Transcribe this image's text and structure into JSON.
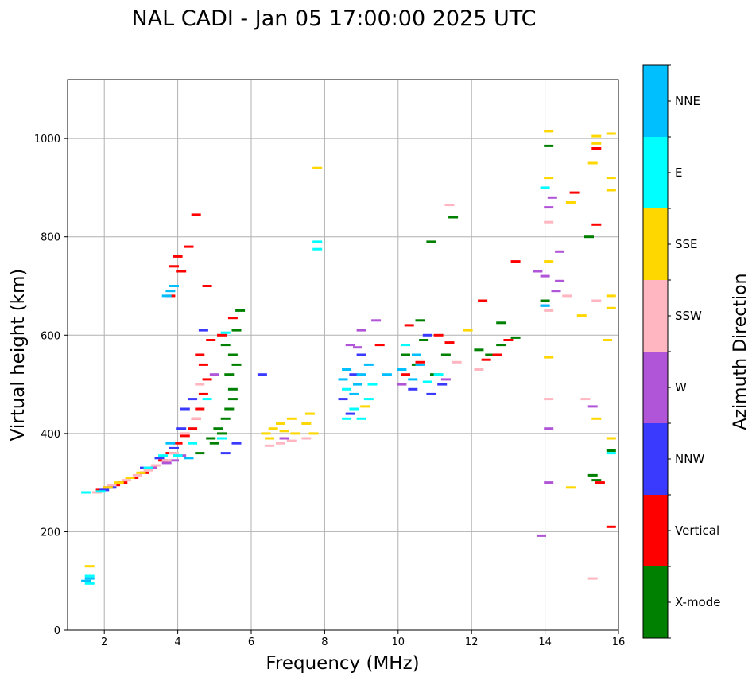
{
  "chart_data": {
    "type": "scatter",
    "title": "NAL CADI - Jan 05 17:00:00 2025 UTC",
    "xlabel": "Frequency (MHz)",
    "ylabel": "Virtual height (km)",
    "xlim": [
      1,
      16
    ],
    "ylim": [
      0,
      1120
    ],
    "xticks": [
      2,
      4,
      6,
      8,
      10,
      12,
      14,
      16
    ],
    "yticks": [
      0,
      200,
      400,
      600,
      800,
      1000
    ],
    "grid": true,
    "colorbar": {
      "label": "Azimuth Direction",
      "categories": [
        {
          "name": "X-mode",
          "color": "#008000"
        },
        {
          "name": "Vertical",
          "color": "#ff0000"
        },
        {
          "name": "NNW",
          "color": "#3a3aff"
        },
        {
          "name": "W",
          "color": "#b055d8"
        },
        {
          "name": "SSW",
          "color": "#ffb6c1"
        },
        {
          "name": "SSE",
          "color": "#ffd700"
        },
        {
          "name": "E",
          "color": "#00ffff"
        },
        {
          "name": "NNE",
          "color": "#00bfff"
        }
      ]
    },
    "series": [
      {
        "name": "X-mode",
        "points": [
          [
            4.6,
            360
          ],
          [
            4.9,
            390
          ],
          [
            5.1,
            410
          ],
          [
            5.3,
            430
          ],
          [
            5.4,
            450
          ],
          [
            5.5,
            470
          ],
          [
            5.5,
            490
          ],
          [
            5.4,
            520
          ],
          [
            5.6,
            540
          ],
          [
            5.5,
            560
          ],
          [
            5.3,
            580
          ],
          [
            5.6,
            610
          ],
          [
            5.7,
            650
          ],
          [
            5.2,
            400
          ],
          [
            5.0,
            380
          ],
          [
            10.2,
            560
          ],
          [
            10.5,
            540
          ],
          [
            10.7,
            590
          ],
          [
            11.0,
            520
          ],
          [
            11.3,
            560
          ],
          [
            12.5,
            560
          ],
          [
            12.8,
            580
          ],
          [
            13.2,
            595
          ],
          [
            12.2,
            570
          ],
          [
            15.2,
            800
          ],
          [
            15.3,
            315
          ],
          [
            15.4,
            305
          ],
          [
            11.5,
            840
          ],
          [
            10.9,
            790
          ],
          [
            14.1,
            985
          ],
          [
            14.0,
            670
          ],
          [
            15.8,
            365
          ],
          [
            10.6,
            630
          ],
          [
            12.8,
            625
          ]
        ]
      },
      {
        "name": "Vertical",
        "points": [
          [
            1.9,
            285
          ],
          [
            2.1,
            290
          ],
          [
            2.3,
            295
          ],
          [
            2.5,
            300
          ],
          [
            2.8,
            310
          ],
          [
            3.1,
            320
          ],
          [
            3.3,
            330
          ],
          [
            3.6,
            345
          ],
          [
            3.8,
            360
          ],
          [
            4.0,
            380
          ],
          [
            4.2,
            395
          ],
          [
            4.4,
            410
          ],
          [
            4.5,
            430
          ],
          [
            4.6,
            450
          ],
          [
            4.7,
            480
          ],
          [
            4.8,
            510
          ],
          [
            4.7,
            540
          ],
          [
            4.6,
            560
          ],
          [
            4.9,
            590
          ],
          [
            3.9,
            740
          ],
          [
            4.0,
            760
          ],
          [
            4.1,
            730
          ],
          [
            3.8,
            680
          ],
          [
            4.3,
            780
          ],
          [
            4.5,
            845
          ],
          [
            5.2,
            600
          ],
          [
            5.5,
            635
          ],
          [
            10.2,
            520
          ],
          [
            10.6,
            545
          ],
          [
            11.1,
            600
          ],
          [
            11.4,
            585
          ],
          [
            12.4,
            550
          ],
          [
            12.7,
            560
          ],
          [
            13.0,
            590
          ],
          [
            13.2,
            750
          ],
          [
            12.3,
            670
          ],
          [
            14.8,
            890
          ],
          [
            15.4,
            825
          ],
          [
            15.4,
            980
          ],
          [
            15.5,
            300
          ],
          [
            15.8,
            210
          ],
          [
            4.8,
            700
          ],
          [
            9.5,
            580
          ],
          [
            10.3,
            620
          ]
        ]
      },
      {
        "name": "NNW",
        "points": [
          [
            2.0,
            285
          ],
          [
            2.2,
            290
          ],
          [
            3.1,
            330
          ],
          [
            3.5,
            350
          ],
          [
            3.9,
            370
          ],
          [
            4.1,
            410
          ],
          [
            4.2,
            450
          ],
          [
            4.4,
            470
          ],
          [
            4.7,
            610
          ],
          [
            5.3,
            360
          ],
          [
            5.6,
            380
          ],
          [
            6.3,
            520
          ],
          [
            8.5,
            470
          ],
          [
            8.8,
            520
          ],
          [
            9.0,
            560
          ],
          [
            10.4,
            490
          ],
          [
            10.9,
            480
          ],
          [
            11.2,
            500
          ],
          [
            14.0,
            660
          ],
          [
            8.7,
            440
          ],
          [
            10.8,
            600
          ]
        ]
      },
      {
        "name": "W",
        "points": [
          [
            3.3,
            330
          ],
          [
            3.7,
            340
          ],
          [
            3.9,
            345
          ],
          [
            4.1,
            355
          ],
          [
            5.0,
            520
          ],
          [
            8.7,
            580
          ],
          [
            9.0,
            610
          ],
          [
            9.4,
            630
          ],
          [
            10.1,
            500
          ],
          [
            11.3,
            510
          ],
          [
            13.8,
            730
          ],
          [
            14.0,
            720
          ],
          [
            14.1,
            410
          ],
          [
            14.1,
            300
          ],
          [
            14.2,
            880
          ],
          [
            14.1,
            860
          ],
          [
            14.4,
            770
          ],
          [
            14.4,
            710
          ],
          [
            14.3,
            690
          ],
          [
            15.3,
            455
          ],
          [
            13.9,
            192
          ],
          [
            6.9,
            390
          ],
          [
            8.9,
            575
          ]
        ]
      },
      {
        "name": "SSW",
        "points": [
          [
            1.8,
            280
          ],
          [
            2.2,
            295
          ],
          [
            2.6,
            305
          ],
          [
            2.9,
            315
          ],
          [
            3.2,
            325
          ],
          [
            3.4,
            335
          ],
          [
            3.7,
            345
          ],
          [
            3.9,
            360
          ],
          [
            4.2,
            400
          ],
          [
            4.5,
            430
          ],
          [
            4.6,
            500
          ],
          [
            6.5,
            375
          ],
          [
            6.8,
            380
          ],
          [
            7.1,
            385
          ],
          [
            7.5,
            390
          ],
          [
            11.6,
            545
          ],
          [
            11.4,
            865
          ],
          [
            12.2,
            530
          ],
          [
            14.1,
            830
          ],
          [
            14.1,
            650
          ],
          [
            14.1,
            470
          ],
          [
            15.1,
            470
          ],
          [
            15.4,
            670
          ],
          [
            15.3,
            105
          ],
          [
            14.6,
            680
          ]
        ]
      },
      {
        "name": "SSE",
        "points": [
          [
            2.1,
            290
          ],
          [
            2.4,
            300
          ],
          [
            2.7,
            310
          ],
          [
            3.0,
            320
          ],
          [
            6.4,
            400
          ],
          [
            6.6,
            410
          ],
          [
            6.8,
            420
          ],
          [
            6.9,
            405
          ],
          [
            7.1,
            430
          ],
          [
            7.2,
            400
          ],
          [
            7.5,
            420
          ],
          [
            7.6,
            440
          ],
          [
            7.7,
            400
          ],
          [
            9.1,
            455
          ],
          [
            11.9,
            610
          ],
          [
            14.1,
            920
          ],
          [
            14.1,
            750
          ],
          [
            14.1,
            555
          ],
          [
            14.7,
            870
          ],
          [
            15.0,
            640
          ],
          [
            15.4,
            1005
          ],
          [
            15.4,
            990
          ],
          [
            15.3,
            950
          ],
          [
            15.8,
            920
          ],
          [
            15.8,
            895
          ],
          [
            15.8,
            680
          ],
          [
            15.8,
            655
          ],
          [
            15.4,
            430
          ],
          [
            15.8,
            390
          ],
          [
            15.7,
            590
          ],
          [
            14.7,
            290
          ],
          [
            7.8,
            940
          ],
          [
            14.1,
            1015
          ],
          [
            15.8,
            1010
          ],
          [
            1.6,
            130
          ],
          [
            6.5,
            390
          ]
        ]
      },
      {
        "name": "E",
        "points": [
          [
            1.5,
            280
          ],
          [
            1.9,
            282
          ],
          [
            3.2,
            330
          ],
          [
            3.6,
            355
          ],
          [
            4.0,
            355
          ],
          [
            4.4,
            380
          ],
          [
            4.8,
            470
          ],
          [
            5.2,
            390
          ],
          [
            5.3,
            605
          ],
          [
            7.8,
            790
          ],
          [
            7.8,
            775
          ],
          [
            8.8,
            450
          ],
          [
            9.0,
            430
          ],
          [
            9.2,
            470
          ],
          [
            8.6,
            430
          ],
          [
            10.8,
            505
          ],
          [
            11.1,
            520
          ],
          [
            10.2,
            580
          ],
          [
            14.0,
            900
          ],
          [
            15.8,
            360
          ],
          [
            1.6,
            110
          ],
          [
            1.6,
            95
          ],
          [
            8.6,
            490
          ],
          [
            9.3,
            500
          ]
        ]
      },
      {
        "name": "NNE",
        "points": [
          [
            1.6,
            105
          ],
          [
            1.5,
            100
          ],
          [
            3.8,
            690
          ],
          [
            3.9,
            700
          ],
          [
            3.7,
            680
          ],
          [
            8.5,
            510
          ],
          [
            8.6,
            530
          ],
          [
            8.8,
            480
          ],
          [
            8.9,
            500
          ],
          [
            9.2,
            540
          ],
          [
            9.0,
            520
          ],
          [
            10.6,
            540
          ],
          [
            10.4,
            510
          ],
          [
            10.1,
            530
          ],
          [
            14.0,
            660
          ],
          [
            4.3,
            350
          ],
          [
            3.8,
            380
          ],
          [
            9.7,
            520
          ],
          [
            10.5,
            560
          ]
        ]
      }
    ]
  }
}
